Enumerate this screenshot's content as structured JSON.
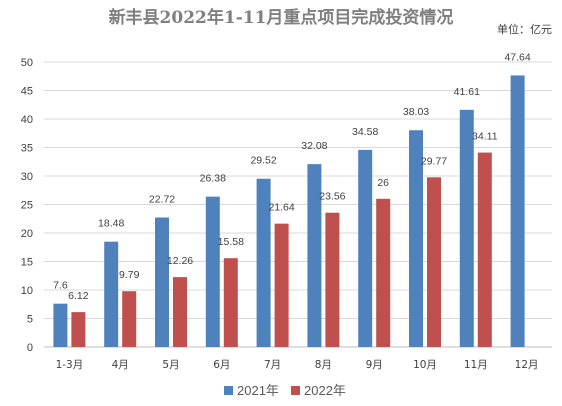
{
  "chart_data": {
    "type": "bar",
    "title": "新丰县2022年1-11月重点项目完成投资情况",
    "unit_label": "单位：亿元",
    "categories": [
      "1-3月",
      "4月",
      "5月",
      "6月",
      "7月",
      "8月",
      "9月",
      "10月",
      "11月",
      "12月"
    ],
    "series": [
      {
        "name": "2021年",
        "color": "#4f81bd",
        "values": [
          7.6,
          18.48,
          22.72,
          26.38,
          29.52,
          32.08,
          34.58,
          38.03,
          41.61,
          47.64
        ],
        "labels": [
          "7.6",
          "18.48",
          "22.72",
          "26.38",
          "29.52",
          "32.08",
          "34.58",
          "38.03",
          "41.61",
          "47.64"
        ]
      },
      {
        "name": "2022年",
        "color": "#c0504d",
        "values": [
          6.12,
          9.79,
          12.26,
          15.58,
          21.64,
          23.56,
          26,
          29.77,
          34.11,
          null
        ],
        "labels": [
          "6.12",
          "9.79",
          "12.26",
          "15.58",
          "21.64",
          "23.56",
          "26",
          "29.77",
          "34.11",
          ""
        ]
      }
    ],
    "ylim": [
      0,
      50
    ],
    "yticks": [
      0,
      5,
      10,
      15,
      20,
      25,
      30,
      35,
      40,
      45,
      50
    ],
    "grid": true,
    "legend_position": "bottom"
  }
}
